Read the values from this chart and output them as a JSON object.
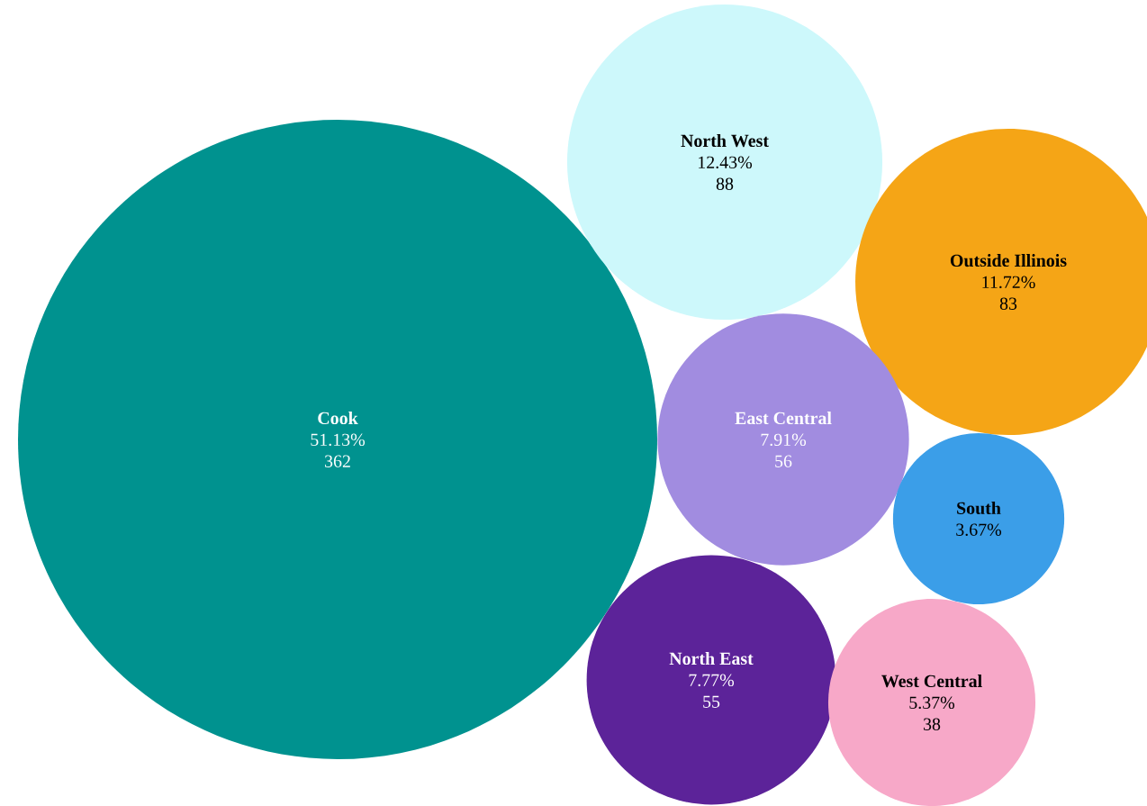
{
  "chart_data": {
    "type": "other",
    "categories": [
      "Cook",
      "North West",
      "Outside Illinois",
      "East Central",
      "South",
      "North East",
      "West Central"
    ],
    "series": [
      {
        "colors": [
          "#00928f",
          "#cdf8fb",
          "#f5a516",
          "#a18ce0",
          "#3b9ee8",
          "#5c2399",
          "#f7a8c8"
        ],
        "values": [
          51.13,
          12.43,
          11.72,
          7.91,
          3.67,
          7.77,
          5.37
        ],
        "value_labels": [
          "51.13%",
          "12.43%",
          "11.72%",
          "7.91%",
          "3.67%",
          "7.77%",
          "5.37%"
        ]
      },
      {
        "values": [
          362,
          88,
          83,
          56,
          null,
          55,
          38
        ],
        "value_labels": [
          "362",
          "88",
          "83",
          "56",
          null,
          "55",
          "38"
        ]
      }
    ],
    "data_labels": true
  }
}
